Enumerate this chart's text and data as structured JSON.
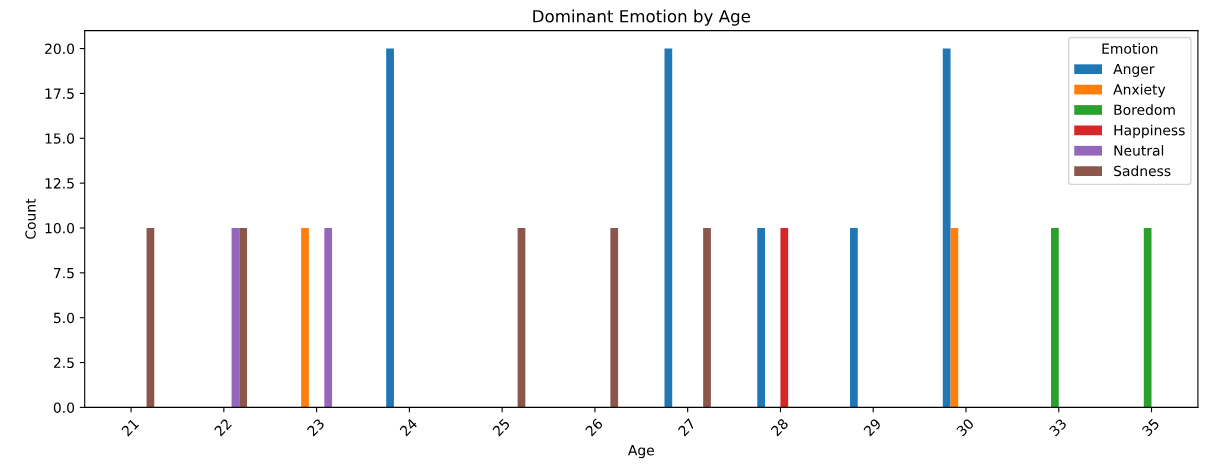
{
  "chart_data": {
    "type": "bar",
    "title": "Dominant Emotion by Age",
    "xlabel": "Age",
    "ylabel": "Count",
    "legend_title": "Emotion",
    "categories": [
      "21",
      "22",
      "23",
      "24",
      "25",
      "26",
      "27",
      "28",
      "29",
      "30",
      "33",
      "35"
    ],
    "series": [
      {
        "name": "Anger",
        "color": "#1f77b4",
        "values": [
          0,
          0,
          0,
          20,
          0,
          0,
          20,
          10,
          10,
          20,
          0,
          0
        ]
      },
      {
        "name": "Anxiety",
        "color": "#ff7f0e",
        "values": [
          0,
          0,
          10,
          0,
          0,
          0,
          0,
          0,
          0,
          10,
          0,
          0
        ]
      },
      {
        "name": "Boredom",
        "color": "#2ca02c",
        "values": [
          0,
          0,
          0,
          0,
          0,
          0,
          0,
          0,
          0,
          0,
          10,
          10
        ]
      },
      {
        "name": "Happiness",
        "color": "#d62728",
        "values": [
          0,
          0,
          0,
          0,
          0,
          0,
          0,
          10,
          0,
          0,
          0,
          0
        ]
      },
      {
        "name": "Neutral",
        "color": "#9467bd",
        "values": [
          0,
          10,
          10,
          0,
          0,
          0,
          0,
          0,
          0,
          0,
          0,
          0
        ]
      },
      {
        "name": "Sadness",
        "color": "#8c564b",
        "values": [
          10,
          10,
          0,
          0,
          10,
          10,
          10,
          0,
          0,
          0,
          0,
          0
        ]
      }
    ],
    "ylim": [
      0,
      21
    ],
    "yticks": [
      {
        "value": 0,
        "label": "0.0"
      },
      {
        "value": 2.5,
        "label": "2.5"
      },
      {
        "value": 5,
        "label": "5.0"
      },
      {
        "value": 7.5,
        "label": "7.5"
      },
      {
        "value": 10,
        "label": "10.0"
      },
      {
        "value": 12.5,
        "label": "12.5"
      },
      {
        "value": 15,
        "label": "15.0"
      },
      {
        "value": 17.5,
        "label": "17.5"
      },
      {
        "value": 20,
        "label": "20.0"
      }
    ],
    "grid": false,
    "legend": "top right"
  }
}
